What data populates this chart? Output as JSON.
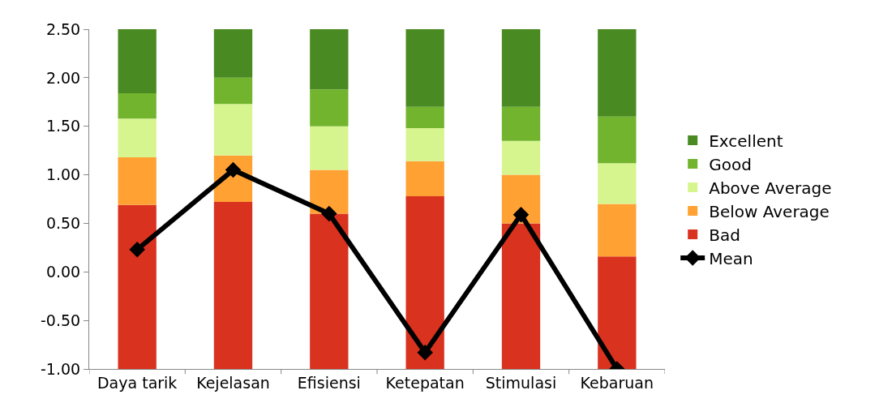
{
  "chart_data": {
    "type": "bar",
    "categories": [
      "Daya tarik",
      "Kejelasan",
      "Efisiensi",
      "Ketepatan",
      "Stimulasi",
      "Kebaruan"
    ],
    "series": [
      {
        "name": "Bad",
        "color": "#d9321f",
        "base": [
          -1.0,
          -1.0,
          -1.0,
          -1.0,
          -1.0,
          -1.0
        ],
        "values": [
          1.69,
          1.72,
          1.6,
          1.78,
          1.5,
          1.16
        ]
      },
      {
        "name": "Below Average",
        "color": "#ffa133",
        "base": [
          0.69,
          0.72,
          0.6,
          0.78,
          0.5,
          0.16
        ],
        "values": [
          0.49,
          0.48,
          0.45,
          0.36,
          0.5,
          0.54
        ]
      },
      {
        "name": "Above Average",
        "color": "#d7f58f",
        "base": [
          1.18,
          1.2,
          1.05,
          1.14,
          1.0,
          0.7
        ],
        "values": [
          0.4,
          0.53,
          0.45,
          0.34,
          0.35,
          0.42
        ]
      },
      {
        "name": "Good",
        "color": "#73b42e",
        "base": [
          1.58,
          1.73,
          1.5,
          1.48,
          1.35,
          1.12
        ],
        "values": [
          0.26,
          0.27,
          0.38,
          0.22,
          0.35,
          0.48
        ]
      },
      {
        "name": "Excellent",
        "color": "#4a8a22",
        "base": [
          1.84,
          2.0,
          1.88,
          1.7,
          1.7,
          1.6
        ],
        "values": [
          0.66,
          0.5,
          0.62,
          0.8,
          0.8,
          0.9
        ]
      },
      {
        "name": "Mean",
        "type": "line",
        "color": "#000000",
        "marker": "diamond",
        "values": [
          0.23,
          1.05,
          0.6,
          -0.83,
          0.59,
          -1.0
        ]
      }
    ],
    "ylim": [
      -1.0,
      2.5
    ],
    "yticks": [
      {
        "value": -1.0,
        "label": "-1.00"
      },
      {
        "value": -0.5,
        "label": "-0.50"
      },
      {
        "value": 0,
        "label": "0.00"
      },
      {
        "value": 0.5,
        "label": "0.50"
      },
      {
        "value": 1.0,
        "label": "1.00"
      },
      {
        "value": 1.5,
        "label": "1.50"
      },
      {
        "value": 2.0,
        "label": "2.00"
      },
      {
        "value": 2.5,
        "label": "2.50"
      }
    ],
    "legend": "right"
  }
}
